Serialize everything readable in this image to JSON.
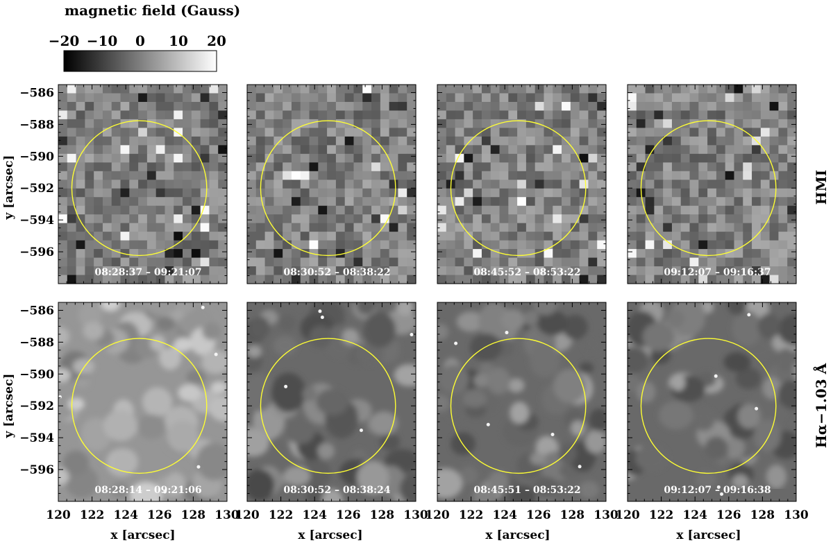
{
  "colorbar": {
    "title": "magnetic field (Gauss)",
    "ticks": [
      "−20",
      "−10",
      "0",
      "10",
      "20"
    ],
    "range": [
      -20,
      20
    ]
  },
  "rows": [
    {
      "label": "HMI",
      "kind": "magnetogram",
      "stamps": [
        "08:28:37 – 09:21:07",
        "08:30:52 – 08:38:22",
        "08:45:52 – 08:53:22",
        "09:12:07 – 09:16:37"
      ]
    },
    {
      "label": "Hα−1.03 Å",
      "kind": "halpha",
      "stamps": [
        "08:28:14 – 09:21:06",
        "08:30:52 – 08:38:24",
        "08:45:51 – 08:53:22",
        "09:12:07 – 09:16:38"
      ]
    }
  ],
  "axes": {
    "xlabel": "x [arcsec]",
    "ylabel": "y [arcsec]",
    "xticks": [
      "120",
      "122",
      "124",
      "126",
      "128",
      "130"
    ],
    "yticks": [
      "−586",
      "−588",
      "−590",
      "−592",
      "−594",
      "−596"
    ],
    "xrange": [
      120,
      130
    ],
    "yrange": [
      -598,
      -585.5
    ]
  },
  "circle": {
    "center_x": 124.8,
    "center_y": -592.0,
    "radius": 4.0,
    "color": "#ffff33"
  }
}
